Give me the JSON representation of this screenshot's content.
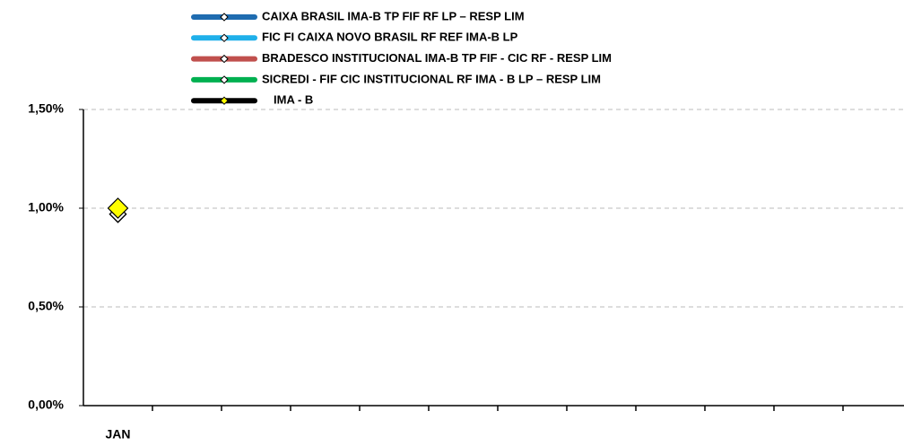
{
  "chart_data": {
    "type": "line",
    "categories": [
      "JAN",
      null,
      null,
      null,
      null,
      null,
      null,
      null,
      null,
      null,
      null,
      null
    ],
    "series": [
      {
        "name": "CAIXA BRASIL IMA-B TP FIF RF LP – RESP LIM",
        "color": "#1f6cb0",
        "values": [
          0.97,
          null,
          null,
          null,
          null,
          null,
          null,
          null,
          null,
          null,
          null,
          null
        ]
      },
      {
        "name": "FIC FI CAIXA NOVO BRASIL RF REF IMA-B LP",
        "color": "#1fb0ea",
        "values": [
          0.97,
          null,
          null,
          null,
          null,
          null,
          null,
          null,
          null,
          null,
          null,
          null
        ]
      },
      {
        "name": "BRADESCO INSTITUCIONAL IMA-B TP FIF - CIC RF - RESP LIM",
        "color": "#c0504d",
        "values": [
          0.97,
          null,
          null,
          null,
          null,
          null,
          null,
          null,
          null,
          null,
          null,
          null
        ]
      },
      {
        "name": "SICREDI - FIF CIC INSTITUCIONAL RF IMA - B LP – RESP LIM",
        "color": "#00b050",
        "values": [
          0.97,
          null,
          null,
          null,
          null,
          null,
          null,
          null,
          null,
          null,
          null,
          null
        ]
      },
      {
        "name": "IMA - B",
        "color": "#000000",
        "marker_color": "#ffff00",
        "values": [
          1.0,
          null,
          null,
          null,
          null,
          null,
          null,
          null,
          null,
          null,
          null,
          null
        ]
      }
    ],
    "ylim": [
      0,
      1.5
    ],
    "yticks": [
      {
        "value": 0,
        "label": "0,00%"
      },
      {
        "value": 0.5,
        "label": "0,50%"
      },
      {
        "value": 1.0,
        "label": "1,00%"
      },
      {
        "value": 1.5,
        "label": "1,50%"
      }
    ],
    "grid": true,
    "legend": "top"
  }
}
